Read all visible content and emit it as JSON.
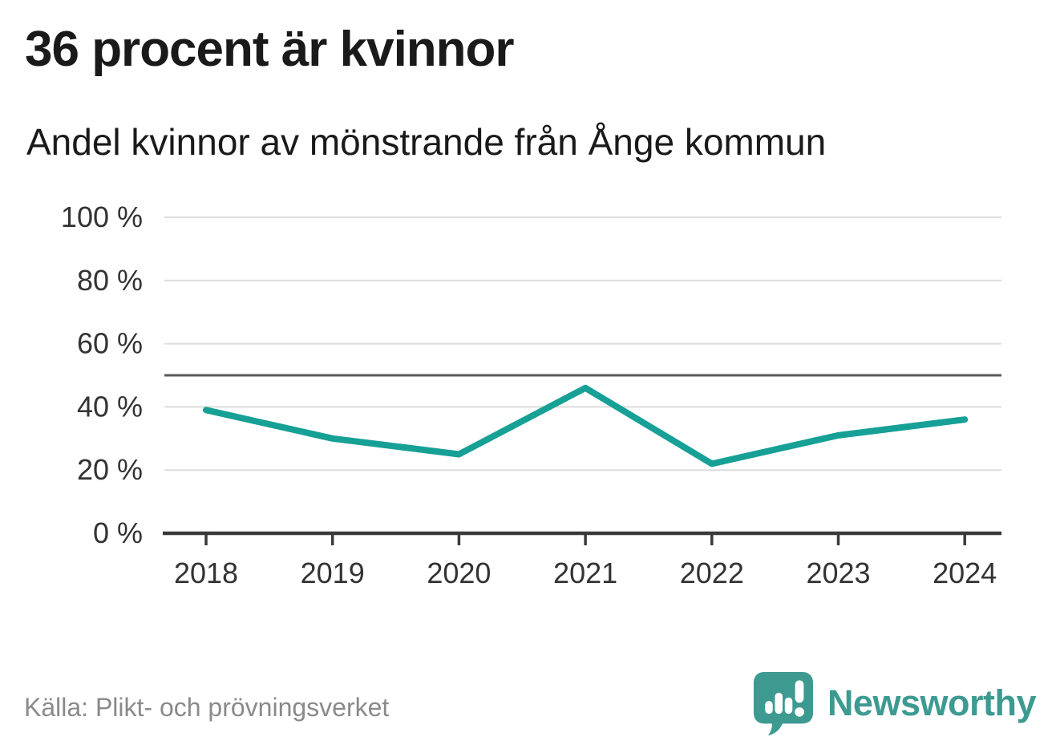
{
  "header": {
    "title": "36 procent är kvinnor",
    "subtitle": "Andel kvinnor av mönstrande från Ånge kommun"
  },
  "chart_data": {
    "type": "line",
    "title": "36 procent är kvinnor",
    "subtitle": "Andel kvinnor av mönstrande från Ånge kommun",
    "x": [
      "2018",
      "2019",
      "2020",
      "2021",
      "2022",
      "2023",
      "2024"
    ],
    "series": [
      {
        "name": "Andel kvinnor av mönstrande",
        "values": [
          39,
          30,
          25,
          46,
          22,
          31,
          36
        ]
      }
    ],
    "xlabel": "",
    "ylabel": "",
    "ylim": [
      0,
      100
    ],
    "yticks": [
      0,
      20,
      40,
      60,
      80,
      100
    ],
    "ytick_format": "{v} %",
    "reference_line": 50,
    "grid": true,
    "legend": "none",
    "colors": {
      "line": "#16a096",
      "grid": "#dcdcdc",
      "axis": "#3a3a3a",
      "reference": "#5a5a5a",
      "tick_label": "#333333"
    }
  },
  "footer": {
    "source": "Källa: Plikt- och prövningsverket",
    "brand": "Newsworthy",
    "brand_color": "#3d9a91",
    "logo_icon": "speech-bubble-bar-chart-icon"
  }
}
